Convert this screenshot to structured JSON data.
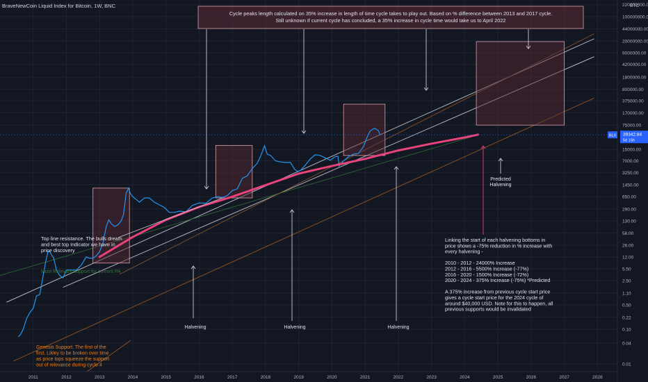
{
  "header": {
    "title": "BraveNewCoin Liquid Index for Bitcoin, 1W, BNC"
  },
  "axis": {
    "currency": "BTC",
    "y_scale": "log",
    "y_ticks": [
      {
        "label": "220000000.00",
        "value": 220000000
      },
      {
        "label": "100000000.00",
        "value": 100000000
      },
      {
        "label": "44000000.00",
        "value": 44000000
      },
      {
        "label": "20000000.00",
        "value": 20000000
      },
      {
        "label": "9000000.00",
        "value": 9000000
      },
      {
        "label": "4200000.00",
        "value": 4200000
      },
      {
        "label": "1800000.00",
        "value": 1800000
      },
      {
        "label": "800000.00",
        "value": 800000
      },
      {
        "label": "375000.00",
        "value": 375000
      },
      {
        "label": "170000.00",
        "value": 170000
      },
      {
        "label": "75000.00",
        "value": 75000
      },
      {
        "label": "15000.00",
        "value": 15000
      },
      {
        "label": "7000.00",
        "value": 7000
      },
      {
        "label": "3250.00",
        "value": 3250
      },
      {
        "label": "1450.00",
        "value": 1450
      },
      {
        "label": "650.00",
        "value": 650
      },
      {
        "label": "290.00",
        "value": 290
      },
      {
        "label": "130.00",
        "value": 130
      },
      {
        "label": "58.00",
        "value": 58
      },
      {
        "label": "26.00",
        "value": 26
      },
      {
        "label": "12.00",
        "value": 12
      },
      {
        "label": "5.50",
        "value": 5.5
      },
      {
        "label": "2.50",
        "value": 2.5
      },
      {
        "label": "1.10",
        "value": 1.1
      },
      {
        "label": "0.50",
        "value": 0.5
      },
      {
        "label": "0.22",
        "value": 0.22
      },
      {
        "label": "0.10",
        "value": 0.1
      },
      {
        "label": "0.04",
        "value": 0.04
      },
      {
        "label": "0.01",
        "value": 0.01
      }
    ],
    "x_ticks": [
      "2011",
      "2012",
      "2013",
      "2014",
      "2015",
      "2016",
      "2017",
      "2018",
      "2019",
      "2020",
      "2021",
      "2022",
      "2023",
      "2024",
      "2025",
      "2026",
      "2027",
      "2028"
    ],
    "price_label": {
      "symbol": "BLX",
      "price": "39342.84",
      "countdown": "5d 15h"
    }
  },
  "annotations": {
    "top_box": [
      "Cycle peaks length calculated on 35% increase in length of time cycle takes to play out. Based on % difference between 2013 and 2017 cycle.",
      "Still unknown if current cycle has concluded, a 35% increase in cycle time would take us to April 2022"
    ],
    "top_line": [
      "Top line resistance. The bulls dream",
      "and best top indicator we have in",
      "price discovery"
    ],
    "support": "Most Relevant support for current PA",
    "genesis": [
      "Genesis Support. The first of the",
      "first. Likley to be broken over time",
      "as price tops squeeze the support",
      "out of relevance during cycle 4"
    ],
    "halvings": [
      "Halvening",
      "Halvening",
      "Halvening"
    ],
    "predicted": [
      "Predicted",
      "Halvening"
    ],
    "linking": [
      "Linking the start of each halvening bottoms in",
      "price shows a -75% reduction in % increase with",
      "every halvening -",
      "",
      "2010 - 2012 - 24000% Increase",
      "2012 - 2016 - 5500% Increase (-77%)",
      "2016 - 2020 - 1500% Increase (-72%)",
      "2020 - 2024 - 375% Increase (-75%) *Predicted",
      "",
      "A 375% increase from previous cycle start price",
      "gives a cycle start price for the 2024 cycle of",
      "around $40,000 USD. Note for this to happen, all",
      "previous supports would be invalidated"
    ]
  },
  "colors": {
    "background": "#131722",
    "price_line": "#2196f3",
    "cycle_curve": "#e8437a",
    "box_fill": "#5c2a34",
    "support_green": "#2e7d32",
    "genesis_orange": "#e5811d",
    "white": "#d1d4dc"
  },
  "chart_data": {
    "type": "line",
    "y_scale": "log",
    "series": [
      {
        "x": [
          2010.55,
          2010.62,
          2010.7,
          2010.8,
          2010.9,
          2011.0,
          2011.1,
          2011.2,
          2011.3,
          2011.38,
          2011.45,
          2011.5,
          2011.55,
          2011.62,
          2011.7,
          2011.8,
          2011.9,
          2012.0,
          2012.15,
          2012.3,
          2012.45,
          2012.6,
          2012.7,
          2012.8,
          2012.9,
          2013.0,
          2013.1,
          2013.2,
          2013.28,
          2013.35,
          2013.45,
          2013.55,
          2013.65,
          2013.72,
          2013.8,
          2013.87,
          2013.93,
          2014.0,
          2014.1,
          2014.2,
          2014.35,
          2014.5,
          2014.65,
          2014.8,
          2014.95,
          2015.1,
          2015.25,
          2015.4,
          2015.6,
          2015.8,
          2016.0,
          2016.2,
          2016.4,
          2016.55,
          2016.7,
          2016.85,
          2017.0,
          2017.15,
          2017.3,
          2017.45,
          2017.6,
          2017.75,
          2017.85,
          2017.93,
          2017.97,
          2018.05,
          2018.15,
          2018.3,
          2018.45,
          2018.6,
          2018.75,
          2018.88,
          2018.96,
          2019.05,
          2019.2,
          2019.35,
          2019.5,
          2019.65,
          2019.8,
          2019.95,
          2020.1,
          2020.18,
          2020.22,
          2020.35,
          2020.5,
          2020.65,
          2020.8,
          2020.95,
          2021.05,
          2021.15,
          2021.25,
          2021.3,
          2021.35,
          2021.4,
          2021.45
        ],
        "y": [
          0.06,
          0.07,
          0.1,
          0.2,
          0.3,
          0.4,
          0.9,
          1.0,
          3.5,
          9,
          18,
          17,
          14,
          11,
          5,
          3.5,
          3,
          5,
          5,
          5,
          7,
          12,
          11,
          11,
          13,
          17,
          30,
          90,
          140,
          110,
          90,
          100,
          130,
          200,
          800,
          1150,
          800,
          650,
          550,
          450,
          600,
          600,
          450,
          380,
          320,
          230,
          230,
          250,
          240,
          370,
          430,
          420,
          600,
          650,
          620,
          700,
          980,
          1100,
          2200,
          2600,
          4200,
          6000,
          9500,
          15000,
          19000,
          11000,
          10000,
          7000,
          6500,
          6300,
          6300,
          4000,
          3500,
          3700,
          5300,
          8000,
          10500,
          10000,
          8500,
          7300,
          9300,
          9500,
          5000,
          7000,
          9300,
          11000,
          11500,
          18000,
          32000,
          50000,
          59000,
          60000,
          56000,
          52000,
          39342.84
        ]
      }
    ],
    "cycle_curve": {
      "x": [
        2013.0,
        2014.0,
        2015.0,
        2016.0,
        2017.0,
        2018.0,
        2019.0,
        2020.0,
        2021.0,
        2022.0,
        2023.0,
        2024.0,
        2024.4
      ],
      "y": [
        12,
        45,
        140,
        330,
        650,
        1400,
        3000,
        5000,
        8000,
        14000,
        22000,
        33000,
        40000
      ]
    },
    "xlim": [
      2010.0,
      2028.6
    ],
    "ylim": [
      0.006,
      300000000
    ]
  }
}
